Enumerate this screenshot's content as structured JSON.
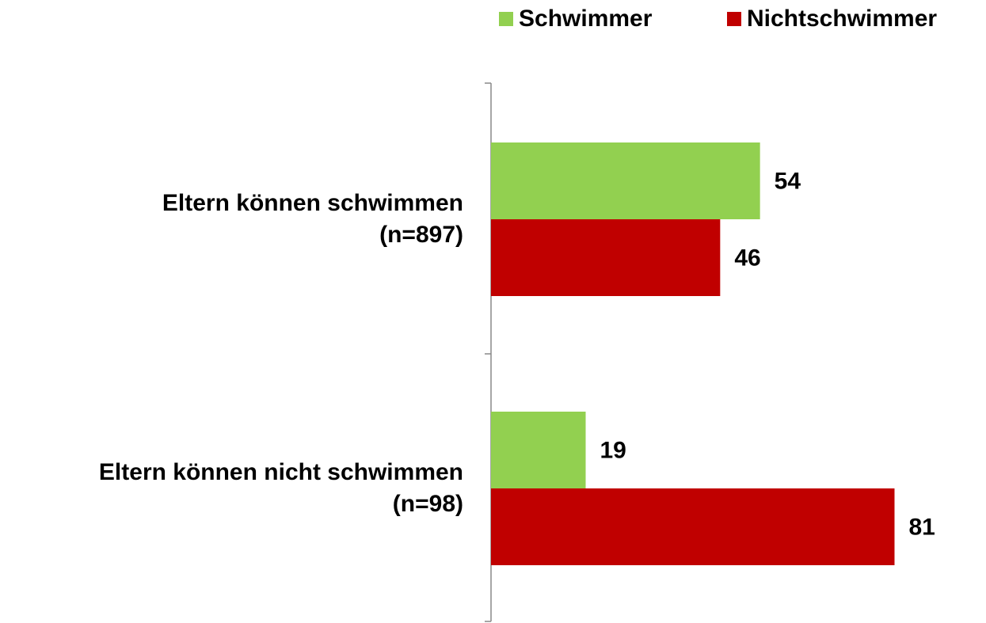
{
  "chart_data": {
    "type": "bar",
    "orientation": "horizontal",
    "categories": [
      "Eltern können schwimmen\n(n=897)",
      "Eltern können nicht schwimmen\n(n=98)"
    ],
    "series": [
      {
        "name": "Schwimmer",
        "color": "#92d050",
        "values": [
          54,
          19
        ]
      },
      {
        "name": "Nichtschwimmer",
        "color": "#c00000",
        "values": [
          46,
          81
        ]
      }
    ],
    "xlim": [
      0,
      100
    ],
    "legend": "top-right"
  }
}
